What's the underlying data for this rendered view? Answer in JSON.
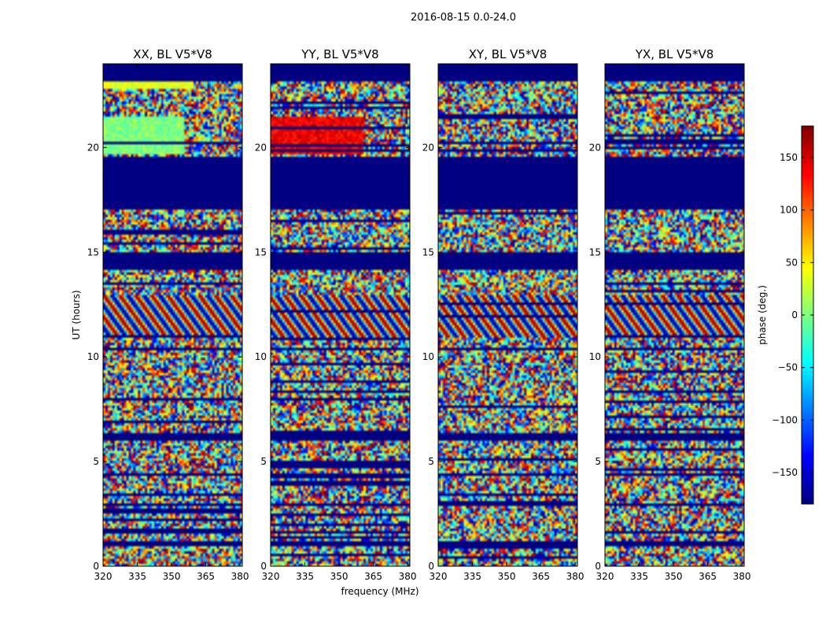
{
  "suptitle": "2016-08-15 0.0-24.0",
  "chart_data": {
    "type": "heatmap",
    "colormap": "jet",
    "xlabel": "frequency (MHz)",
    "ylabel": "UT (hours)",
    "xlim": [
      320,
      381
    ],
    "ylim": [
      0,
      24
    ],
    "xticks": [
      320,
      335,
      350,
      365,
      380
    ],
    "yticks": [
      0,
      5,
      10,
      15,
      20
    ],
    "panels": [
      {
        "title": "XX, BL V5*V8"
      },
      {
        "title": "YY, BL V5*V8"
      },
      {
        "title": "XY, BL V5*V8"
      },
      {
        "title": "YX, BL V5*V8"
      }
    ],
    "colorbar": {
      "label": "phase (deg.)",
      "range": [
        -180,
        180
      ],
      "ticks": [
        150,
        100,
        50,
        0,
        -50,
        -100,
        -150
      ],
      "tick_labels": [
        "150",
        "100",
        "50",
        "0",
        "−50",
        "−100",
        "−150"
      ]
    },
    "masked_bands_hours": [
      [
        17.0,
        19.6
      ],
      [
        14.2,
        15.0
      ],
      [
        10.3,
        10.4
      ],
      [
        6.0,
        6.3
      ],
      [
        4.3,
        4.5
      ],
      [
        2.9,
        3.0
      ],
      [
        1.0,
        1.2
      ],
      [
        23.2,
        24.0
      ]
    ],
    "fringe_bands_hours": [
      [
        10.9,
        12.9
      ]
    ],
    "coherent_regions": [
      {
        "panel": "XX",
        "hours": [
          19.7,
          21.5
        ],
        "freq_mhz": [
          320,
          356
        ],
        "phase_deg": 0
      },
      {
        "panel": "XX",
        "hours": [
          22.8,
          23.2
        ],
        "freq_mhz": [
          320,
          360
        ],
        "phase_deg": 35
      },
      {
        "panel": "YY",
        "hours": [
          19.7,
          21.5
        ],
        "freq_mhz": [
          320,
          361
        ],
        "phase_deg": 140
      }
    ]
  }
}
